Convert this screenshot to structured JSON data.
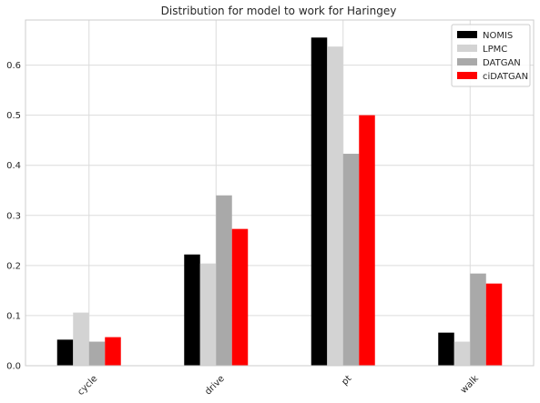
{
  "chart_data": {
    "type": "bar",
    "title": "Distribution for model to work for Haringey",
    "xlabel": "",
    "ylabel": "",
    "categories": [
      "cycle",
      "drive",
      "pt",
      "walk"
    ],
    "series": [
      {
        "name": "NOMIS",
        "color": "#000000",
        "values": [
          0.052,
          0.222,
          0.655,
          0.066
        ]
      },
      {
        "name": "LPMC",
        "color": "#d3d3d3",
        "values": [
          0.106,
          0.204,
          0.637,
          0.048
        ]
      },
      {
        "name": "DATGAN",
        "color": "#a9a9a9",
        "values": [
          0.048,
          0.34,
          0.423,
          0.184
        ]
      },
      {
        "name": "ciDATGAN",
        "color": "#ff0000",
        "values": [
          0.057,
          0.273,
          0.5,
          0.164
        ]
      }
    ],
    "ylim": [
      0,
      0.69
    ],
    "yticks": [
      "0.0",
      "0.1",
      "0.2",
      "0.3",
      "0.4",
      "0.5",
      "0.6"
    ],
    "grid": true,
    "legend_position": "top-right"
  }
}
